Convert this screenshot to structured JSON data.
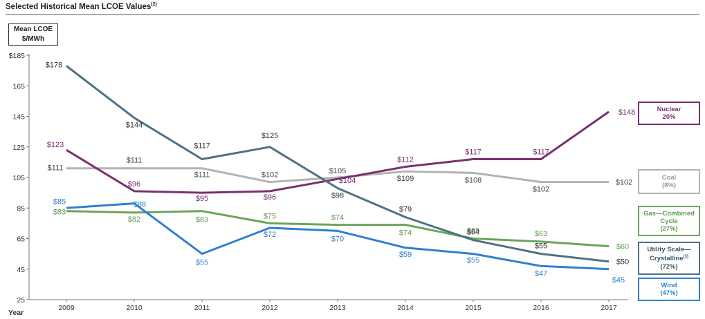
{
  "header": {
    "title": "Selected Historical Mean LCOE Values",
    "title_note": "(2)",
    "ylabel_line1": "Mean LCOE",
    "ylabel_line2": "$/MWh",
    "xaxis_label": "Year"
  },
  "chart_data": {
    "type": "line",
    "title": "Selected Historical Mean LCOE Values",
    "xlabel": "Year",
    "ylabel": "Mean LCOE $/MWh",
    "x": [
      2009,
      2010,
      2011,
      2012,
      2013,
      2014,
      2015,
      2016,
      2017
    ],
    "ylim": [
      25,
      185
    ],
    "yticks": [
      "$185",
      "165",
      "145",
      "125",
      "105",
      "85",
      "65",
      "45",
      "25"
    ],
    "ytick_values": [
      185,
      165,
      145,
      125,
      105,
      85,
      65,
      45,
      25
    ],
    "grid": false,
    "legend_placement": "right",
    "series": [
      {
        "name": "Nuclear",
        "pct": "20%",
        "color": "#7a2f6e",
        "label_color": "#7a2f6e",
        "values": [
          123,
          96,
          95,
          96,
          104,
          112,
          117,
          117,
          148
        ],
        "labels": [
          "$123",
          "$96",
          "$95",
          "$96",
          "$104",
          "$112",
          "$117",
          "$117",
          "$148"
        ]
      },
      {
        "name": "Coal",
        "pct": "(8%)",
        "color": "#b3b3b3",
        "label_color": "#444444",
        "values": [
          111,
          111,
          111,
          102,
          105,
          109,
          108,
          102,
          102
        ],
        "labels": [
          "$111",
          "$111",
          "$111",
          "$102",
          "$105",
          "$109",
          "$108",
          "$102",
          "$102"
        ]
      },
      {
        "name": "Gas—Combined Cycle",
        "pct": "(27%)",
        "color": "#6aa55a",
        "label_color": "#5f9a4f",
        "values": [
          83,
          82,
          83,
          75,
          74,
          74,
          65,
          63,
          60
        ],
        "labels": [
          "$83",
          "$82",
          "$83",
          "$75",
          "$74",
          "$74",
          "$65",
          "$63",
          "$60"
        ]
      },
      {
        "name": "Utility Scale—Crystalline",
        "note": "(3)",
        "pct": "(72%)",
        "color": "#4f7184",
        "label_color": "#333333",
        "values": [
          178,
          144,
          117,
          125,
          98,
          79,
          64,
          55,
          50
        ],
        "labels": [
          "$178",
          "$144",
          "$117",
          "$125",
          "$98",
          "$79",
          "$64",
          "$55",
          "$50"
        ]
      },
      {
        "name": "Wind",
        "pct": "(47%)",
        "color": "#2f7fd0",
        "label_color": "#2f7fd0",
        "values": [
          85,
          88,
          55,
          72,
          70,
          59,
          55,
          47,
          45
        ],
        "labels": [
          "$85",
          "$88",
          "$55",
          "$72",
          "$70",
          "$59",
          "$55",
          "$47",
          "$45"
        ]
      }
    ]
  },
  "legend": [
    {
      "line1": "Nuclear",
      "line2": "",
      "line3": "20%",
      "color": "#7a2f6e",
      "text_color": "#7a2f6e"
    },
    {
      "line1": "Coal",
      "line2": "",
      "line3": "(8%)",
      "color": "#b3b3b3",
      "text_color": "#999999"
    },
    {
      "line1": "Gas—Combined",
      "line2": "Cycle",
      "line3": "(27%)",
      "color": "#6aa55a",
      "text_color": "#5f9a4f"
    },
    {
      "line1": "Utility Scale—",
      "line2": "Crystalline",
      "line2_note": "(3)",
      "line3": "(72%)",
      "color": "#4f7184",
      "text_color": "#35576a"
    },
    {
      "line1": "Wind",
      "line2": "",
      "line3": "(47%)",
      "color": "#2f7fd0",
      "text_color": "#2f7fd0"
    }
  ]
}
